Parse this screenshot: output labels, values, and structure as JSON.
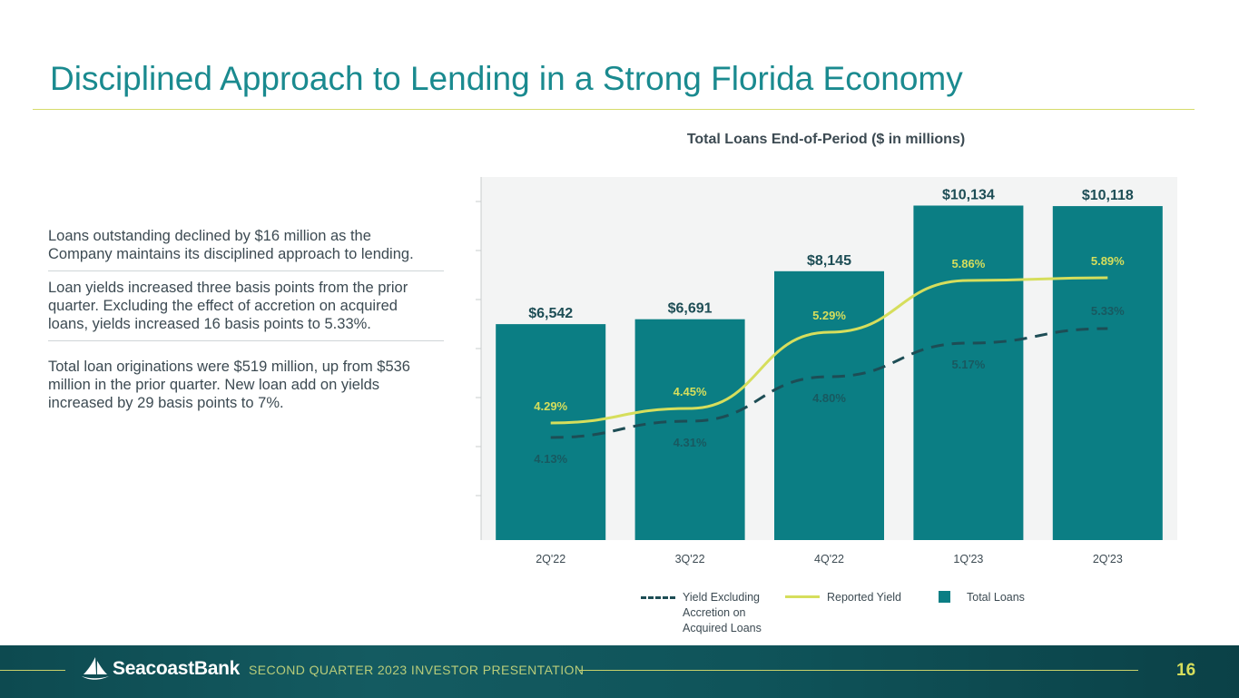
{
  "slide": {
    "title": "Disciplined Approach to Lending in a Strong Florida Economy",
    "bullets": [
      "Loans outstanding declined by $16 million as the Company maintains its disciplined approach to lending.",
      "Loan yields increased three basis points from the prior quarter. Excluding the effect of accretion on acquired loans, yields increased 16 basis points to 5.33%.",
      "Total loan originations were $519 million, up from $536 million in the prior quarter. New loan add on yields increased by 29 basis points to 7%."
    ]
  },
  "chart_data": {
    "type": "bar",
    "title": "Total Loans End-of-Period ($ in millions)",
    "categories": [
      "2Q'22",
      "3Q'22",
      "4Q'22",
      "1Q'23",
      "2Q'23"
    ],
    "series": [
      {
        "name": "Total Loans",
        "type": "bar",
        "values": [
          6542,
          6691,
          8145,
          10134,
          10118
        ],
        "labels": [
          "$6,542",
          "$6,691",
          "$8,145",
          "$10,134",
          "$10,118"
        ],
        "color": "#0b7e84"
      },
      {
        "name": "Reported Yield",
        "type": "line",
        "values": [
          4.29,
          4.45,
          5.29,
          5.86,
          5.89
        ],
        "labels": [
          "4.29%",
          "4.45%",
          "5.29%",
          "5.86%",
          "5.89%"
        ],
        "color": "#d6de5c"
      },
      {
        "name": "Yield Excluding Accretion on Acquired Loans",
        "type": "line",
        "style": "dashed",
        "values": [
          4.13,
          4.31,
          4.8,
          5.17,
          5.33
        ],
        "labels": [
          "4.13%",
          "4.31%",
          "4.80%",
          "5.17%",
          "5.33%"
        ],
        "color": "#1d4d55"
      }
    ],
    "legend": {
      "position": "bottom",
      "items": [
        {
          "label": "Yield Excluding Accretion on Acquired Loans"
        },
        {
          "label": "Reported Yield"
        },
        {
          "label": "Total Loans"
        }
      ]
    }
  },
  "footer": {
    "logo_text": "SeacoastBank",
    "presentation_label": "SECOND QUARTER 2023 INVESTOR PRESENTATION",
    "page_number": "16"
  }
}
